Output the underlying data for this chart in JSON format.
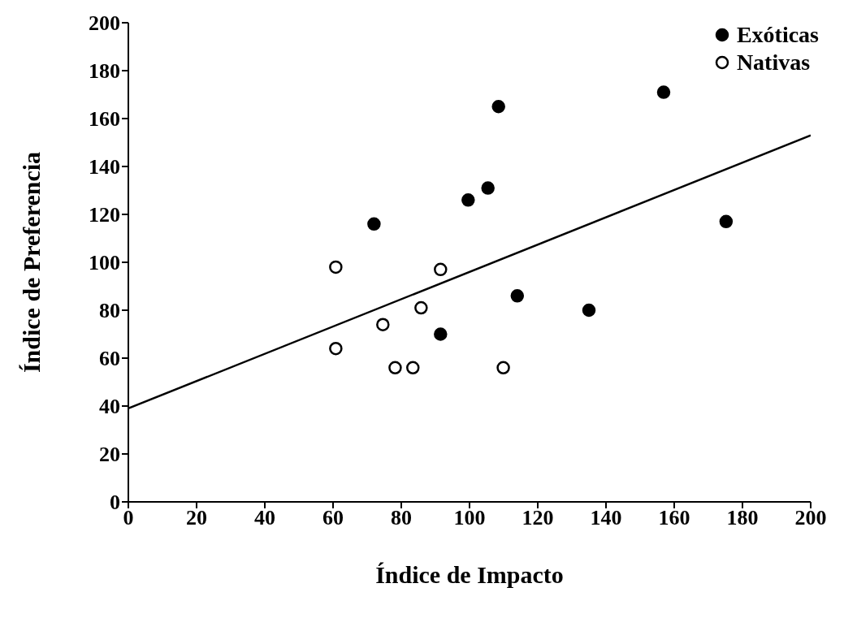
{
  "chart_data": {
    "type": "scatter",
    "xlabel": "Índice de Impacto",
    "ylabel": "Índice de Preferencia",
    "xlim": [
      0,
      200
    ],
    "xticks": [
      0,
      20,
      40,
      60,
      80,
      100,
      120,
      140,
      160,
      180,
      200
    ],
    "ylim": [
      0,
      200
    ],
    "yticks": [
      0,
      20,
      40,
      60,
      80,
      100,
      120,
      140,
      160,
      180,
      200
    ],
    "grid": false,
    "legend": "top right",
    "series": [
      {
        "name": "Exóticas",
        "color": "#000000",
        "marker": "circle",
        "x": [
          72,
          108.5,
          99.6,
          105.4,
          91.5,
          114,
          135,
          156.9,
          175.2
        ],
        "values": [
          116,
          165,
          126,
          131,
          70,
          86,
          80,
          171,
          117
        ]
      },
      {
        "name": "Nativas",
        "color": "#ffffff",
        "marker": "circle",
        "x": [
          60.8,
          60.8,
          74.6,
          78.2,
          83.4,
          85.8,
          91.5,
          109.9
        ],
        "values": [
          98,
          64,
          74,
          56,
          56,
          81,
          97,
          56
        ]
      },
      {
        "type": "line",
        "color": "#000000",
        "x": [
          0,
          200
        ],
        "values": [
          39,
          153
        ]
      }
    ]
  }
}
